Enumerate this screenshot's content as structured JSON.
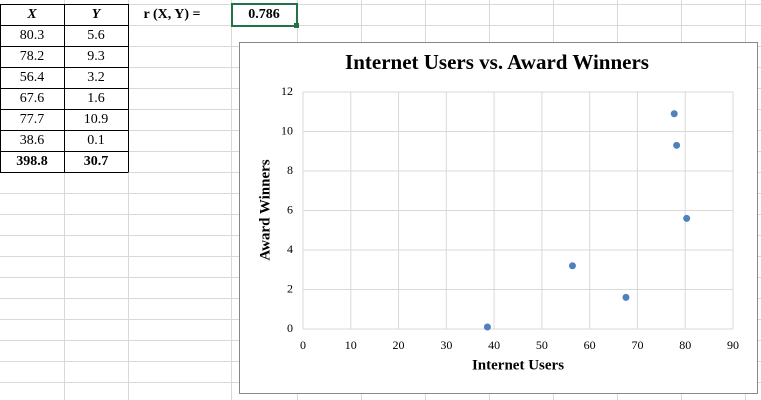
{
  "table": {
    "headers": [
      "X",
      "Y"
    ],
    "rows": [
      [
        80.3,
        5.6
      ],
      [
        78.2,
        9.3
      ],
      [
        56.4,
        3.2
      ],
      [
        67.6,
        1.6
      ],
      [
        77.7,
        10.9
      ],
      [
        38.6,
        0.1
      ]
    ],
    "totals": [
      398.8,
      30.7
    ]
  },
  "correlation": {
    "label": "r (X, Y) =",
    "value": 0.786
  },
  "chart_data": {
    "type": "scatter",
    "title": "Internet Users vs. Award Winners",
    "x_label": "Internet Users",
    "y_label": "Award Winners",
    "x": [
      80.3,
      78.2,
      56.4,
      67.6,
      77.7,
      38.6
    ],
    "values": [
      5.6,
      9.3,
      3.2,
      1.6,
      10.9,
      0.1
    ],
    "color": "#4f81bd",
    "xlim": [
      0,
      90
    ],
    "xticks": [
      0,
      10,
      20,
      30,
      40,
      50,
      60,
      70,
      80,
      90
    ],
    "ylim": [
      0,
      12
    ],
    "yticks": [
      0,
      2,
      4,
      6,
      8,
      10,
      12
    ],
    "grid": true
  }
}
